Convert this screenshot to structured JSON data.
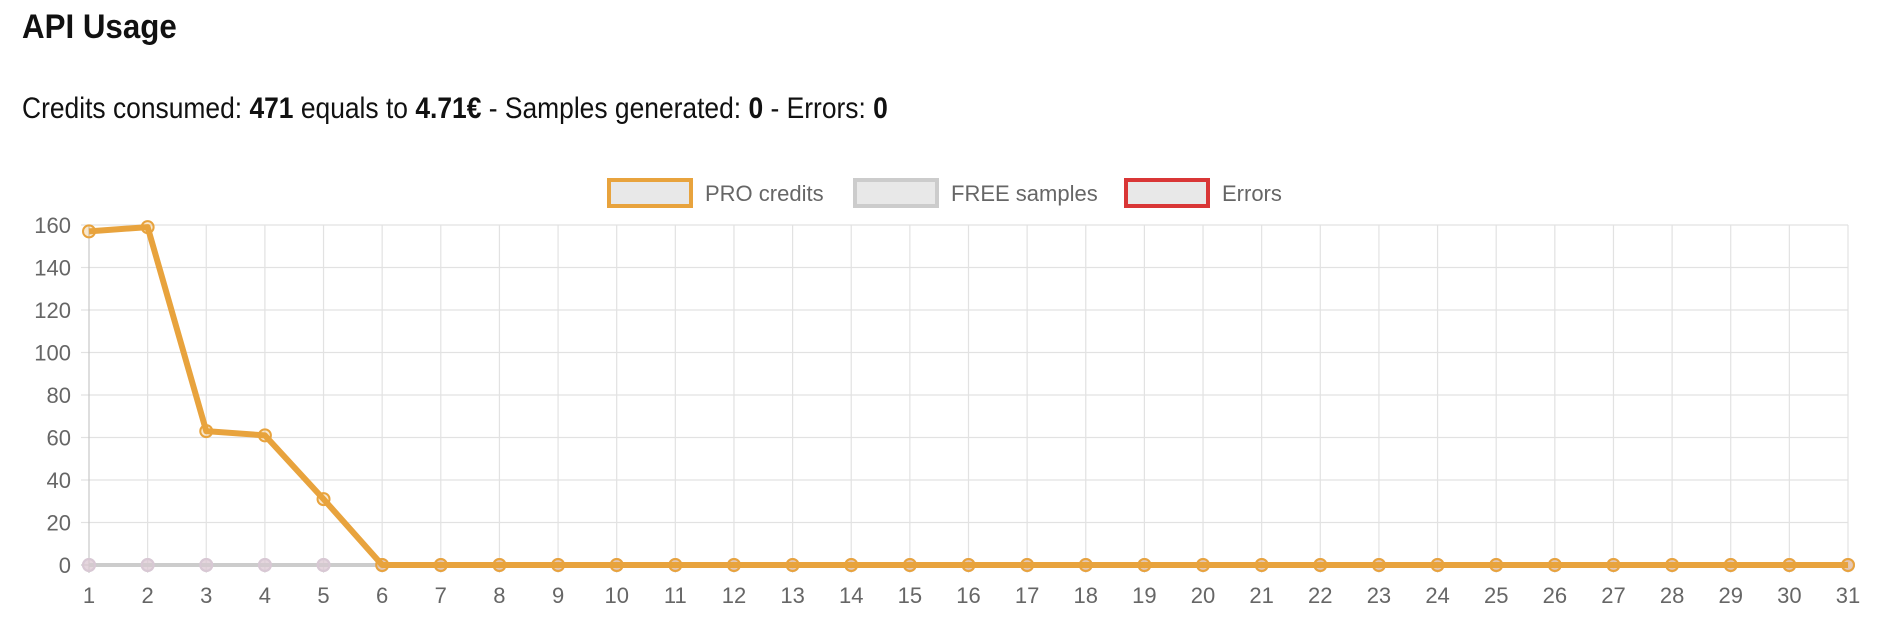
{
  "page": {
    "title": "API Usage",
    "summary": {
      "credits_label": "Credits consumed: ",
      "credits_value": "471",
      "equals_label": " equals to ",
      "euro_value": "4.71€",
      "samples_label": " - Samples generated: ",
      "samples_value": "0",
      "errors_label": " - Errors: ",
      "errors_value": "0"
    }
  },
  "chart_data": {
    "type": "line",
    "title": "",
    "xlabel": "",
    "ylabel": "",
    "ylim": [
      0,
      160
    ],
    "yticks": [
      0,
      20,
      40,
      60,
      80,
      100,
      120,
      140,
      160
    ],
    "grid": true,
    "legend_position": "top",
    "categories": [
      "1",
      "2",
      "3",
      "4",
      "5",
      "6",
      "7",
      "8",
      "9",
      "10",
      "11",
      "12",
      "13",
      "14",
      "15",
      "16",
      "17",
      "18",
      "19",
      "20",
      "21",
      "22",
      "23",
      "24",
      "25",
      "26",
      "27",
      "28",
      "29",
      "30",
      "31"
    ],
    "series": [
      {
        "name": "PRO credits",
        "color": "#e8a33d",
        "values": [
          157,
          159,
          63,
          61,
          31,
          0,
          0,
          0,
          0,
          0,
          0,
          0,
          0,
          0,
          0,
          0,
          0,
          0,
          0,
          0,
          0,
          0,
          0,
          0,
          0,
          0,
          0,
          0,
          0,
          0,
          0
        ]
      },
      {
        "name": "FREE samples",
        "color": "#cccccc",
        "values": [
          0,
          0,
          0,
          0,
          0,
          0,
          0,
          0,
          0,
          0,
          0,
          0,
          0,
          0,
          0,
          0,
          0,
          0,
          0,
          0,
          0,
          0,
          0,
          0,
          0,
          0,
          0,
          0,
          0,
          0,
          0
        ]
      },
      {
        "name": "Errors",
        "color": "#d93636",
        "values": [
          0,
          0,
          0,
          0,
          0,
          0,
          0,
          0,
          0,
          0,
          0,
          0,
          0,
          0,
          0,
          0,
          0,
          0,
          0,
          0,
          0,
          0,
          0,
          0,
          0,
          0,
          0,
          0,
          0,
          0,
          0
        ]
      }
    ]
  }
}
